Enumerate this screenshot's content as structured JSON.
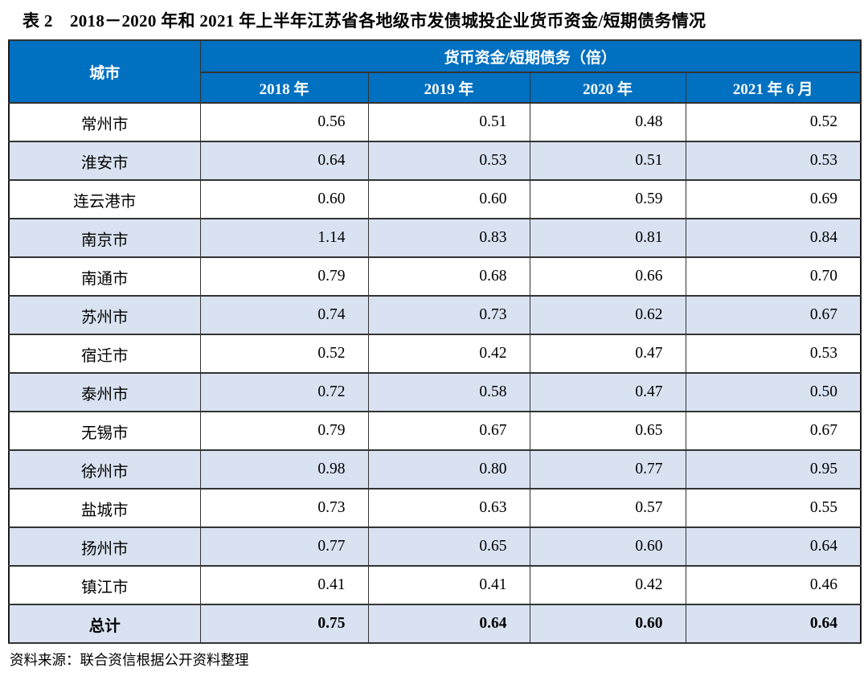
{
  "title": "表 2　2018－2020 年和 2021 年上半年江苏省各地级市发债城投企业货币资金/短期债务情况",
  "table": {
    "col_city": "城市",
    "group_header": "货币资金/短期债务（倍）",
    "year_headers": [
      "2018 年",
      "2019 年",
      "2020 年",
      "2021 年 6 月"
    ],
    "rows": [
      {
        "city": "常州市",
        "values": [
          "0.56",
          "0.51",
          "0.48",
          "0.52"
        ]
      },
      {
        "city": "淮安市",
        "values": [
          "0.64",
          "0.53",
          "0.51",
          "0.53"
        ]
      },
      {
        "city": "连云港市",
        "values": [
          "0.60",
          "0.60",
          "0.59",
          "0.69"
        ]
      },
      {
        "city": "南京市",
        "values": [
          "1.14",
          "0.83",
          "0.81",
          "0.84"
        ]
      },
      {
        "city": "南通市",
        "values": [
          "0.79",
          "0.68",
          "0.66",
          "0.70"
        ]
      },
      {
        "city": "苏州市",
        "values": [
          "0.74",
          "0.73",
          "0.62",
          "0.67"
        ]
      },
      {
        "city": "宿迁市",
        "values": [
          "0.52",
          "0.42",
          "0.47",
          "0.53"
        ]
      },
      {
        "city": "泰州市",
        "values": [
          "0.72",
          "0.58",
          "0.47",
          "0.50"
        ]
      },
      {
        "city": "无锡市",
        "values": [
          "0.79",
          "0.67",
          "0.65",
          "0.67"
        ]
      },
      {
        "city": "徐州市",
        "values": [
          "0.98",
          "0.80",
          "0.77",
          "0.95"
        ]
      },
      {
        "city": "盐城市",
        "values": [
          "0.73",
          "0.63",
          "0.57",
          "0.55"
        ]
      },
      {
        "city": "扬州市",
        "values": [
          "0.77",
          "0.65",
          "0.60",
          "0.64"
        ]
      },
      {
        "city": "镇江市",
        "values": [
          "0.41",
          "0.41",
          "0.42",
          "0.46"
        ]
      }
    ],
    "total_row": {
      "city": "总计",
      "values": [
        "0.75",
        "0.64",
        "0.60",
        "0.64"
      ]
    }
  },
  "footer": "资料来源：联合资信根据公开资料整理",
  "colors": {
    "header_bg": "#0070C0",
    "header_text": "#FFFFFF",
    "row_alt_bg": "#D9E2F1",
    "border": "#333333"
  },
  "chart_data": {
    "type": "table",
    "title": "表 2　2018－2020 年和 2021 年上半年江苏省各地级市发债城投企业货币资金/短期债务情况",
    "columns": [
      "城市",
      "2018 年",
      "2019 年",
      "2020 年",
      "2021 年 6 月"
    ],
    "group_header": "货币资金/短期债务（倍）",
    "rows": [
      [
        "常州市",
        0.56,
        0.51,
        0.48,
        0.52
      ],
      [
        "淮安市",
        0.64,
        0.53,
        0.51,
        0.53
      ],
      [
        "连云港市",
        0.6,
        0.6,
        0.59,
        0.69
      ],
      [
        "南京市",
        1.14,
        0.83,
        0.81,
        0.84
      ],
      [
        "南通市",
        0.79,
        0.68,
        0.66,
        0.7
      ],
      [
        "苏州市",
        0.74,
        0.73,
        0.62,
        0.67
      ],
      [
        "宿迁市",
        0.52,
        0.42,
        0.47,
        0.53
      ],
      [
        "泰州市",
        0.72,
        0.58,
        0.47,
        0.5
      ],
      [
        "无锡市",
        0.79,
        0.67,
        0.65,
        0.67
      ],
      [
        "徐州市",
        0.98,
        0.8,
        0.77,
        0.95
      ],
      [
        "盐城市",
        0.73,
        0.63,
        0.57,
        0.55
      ],
      [
        "扬州市",
        0.77,
        0.65,
        0.6,
        0.64
      ],
      [
        "镇江市",
        0.41,
        0.41,
        0.42,
        0.46
      ],
      [
        "总计",
        0.75,
        0.64,
        0.6,
        0.64
      ]
    ]
  }
}
